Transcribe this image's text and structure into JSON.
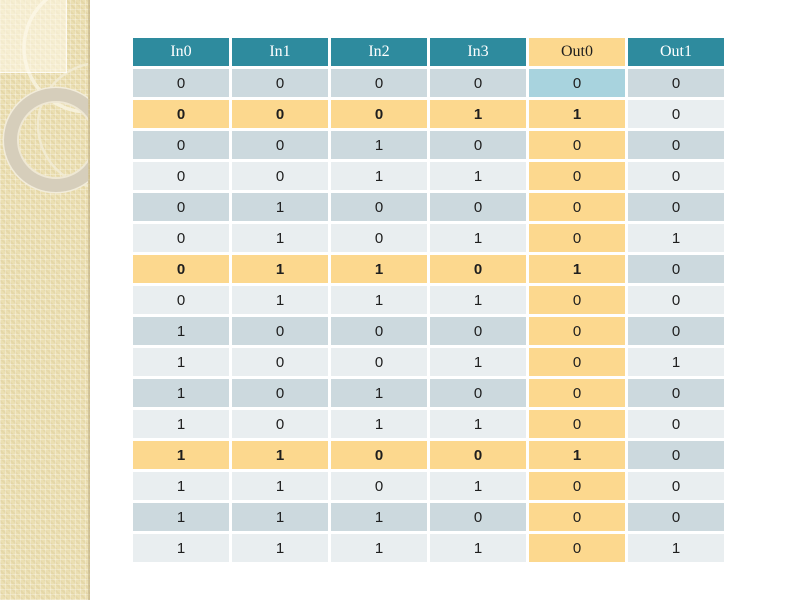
{
  "slide": {
    "type": "presentation-slide",
    "background": "#ffffff"
  },
  "table": {
    "columns": [
      {
        "label": "In0",
        "variant": "teal"
      },
      {
        "label": "In1",
        "variant": "teal"
      },
      {
        "label": "In2",
        "variant": "teal"
      },
      {
        "label": "In3",
        "variant": "teal"
      },
      {
        "label": "Out0",
        "variant": "yellow"
      },
      {
        "label": "Out1",
        "variant": "teal"
      }
    ],
    "rows": [
      {
        "values": [
          "0",
          "0",
          "0",
          "0",
          "0",
          "0"
        ],
        "band": "dark",
        "highlight": false,
        "out0_cell": "blue"
      },
      {
        "values": [
          "0",
          "0",
          "0",
          "1",
          "1",
          "0"
        ],
        "band": "light",
        "highlight": true,
        "out0_cell": "yellow"
      },
      {
        "values": [
          "0",
          "0",
          "1",
          "0",
          "0",
          "0"
        ],
        "band": "dark",
        "highlight": false,
        "out0_cell": "yellow"
      },
      {
        "values": [
          "0",
          "0",
          "1",
          "1",
          "0",
          "0"
        ],
        "band": "light",
        "highlight": false,
        "out0_cell": "yellow"
      },
      {
        "values": [
          "0",
          "1",
          "0",
          "0",
          "0",
          "0"
        ],
        "band": "dark",
        "highlight": false,
        "out0_cell": "yellow"
      },
      {
        "values": [
          "0",
          "1",
          "0",
          "1",
          "0",
          "1"
        ],
        "band": "light",
        "highlight": false,
        "out0_cell": "yellow"
      },
      {
        "values": [
          "0",
          "1",
          "1",
          "0",
          "1",
          "0"
        ],
        "band": "dark",
        "highlight": true,
        "out0_cell": "yellow"
      },
      {
        "values": [
          "0",
          "1",
          "1",
          "1",
          "0",
          "0"
        ],
        "band": "light",
        "highlight": false,
        "out0_cell": "yellow"
      },
      {
        "values": [
          "1",
          "0",
          "0",
          "0",
          "0",
          "0"
        ],
        "band": "dark",
        "highlight": false,
        "out0_cell": "yellow"
      },
      {
        "values": [
          "1",
          "0",
          "0",
          "1",
          "0",
          "1"
        ],
        "band": "light",
        "highlight": false,
        "out0_cell": "yellow"
      },
      {
        "values": [
          "1",
          "0",
          "1",
          "0",
          "0",
          "0"
        ],
        "band": "dark",
        "highlight": false,
        "out0_cell": "yellow"
      },
      {
        "values": [
          "1",
          "0",
          "1",
          "1",
          "0",
          "0"
        ],
        "band": "light",
        "highlight": false,
        "out0_cell": "yellow"
      },
      {
        "values": [
          "1",
          "1",
          "0",
          "0",
          "1",
          "0"
        ],
        "band": "dark",
        "highlight": true,
        "out0_cell": "yellow"
      },
      {
        "values": [
          "1",
          "1",
          "0",
          "1",
          "0",
          "0"
        ],
        "band": "light",
        "highlight": false,
        "out0_cell": "yellow"
      },
      {
        "values": [
          "1",
          "1",
          "1",
          "0",
          "0",
          "0"
        ],
        "band": "dark",
        "highlight": false,
        "out0_cell": "yellow"
      },
      {
        "values": [
          "1",
          "1",
          "1",
          "1",
          "0",
          "1"
        ],
        "band": "light",
        "highlight": false,
        "out0_cell": "yellow"
      }
    ]
  },
  "colors": {
    "header_bg": "#2e8b9e",
    "header_text": "#ffffff",
    "out0_header_bg": "#fcd88e",
    "out0_header_text": "#1e1e1e",
    "row_dark": "#ccd9de",
    "row_light": "#e9eef0",
    "highlight_bg": "#fcd88e",
    "out0_selected_bg": "#a8d3de",
    "value_text": "#1e1e1e",
    "value_red": "#bf1c1c",
    "sidebar_bg": "#ebdfb2"
  }
}
